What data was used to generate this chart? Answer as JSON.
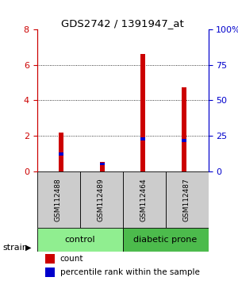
{
  "title": "GDS2742 / 1391947_at",
  "samples": [
    "GSM112488",
    "GSM112489",
    "GSM112464",
    "GSM112487"
  ],
  "red_values": [
    2.2,
    0.5,
    6.6,
    4.75
  ],
  "blue_values": [
    0.15,
    0.12,
    0.15,
    0.15
  ],
  "blue_bottoms": [
    0.9,
    0.35,
    1.75,
    1.65
  ],
  "left_ylim": [
    0,
    8
  ],
  "right_ylim": [
    0,
    100
  ],
  "left_yticks": [
    0,
    2,
    4,
    6,
    8
  ],
  "right_yticks": [
    0,
    25,
    50,
    75,
    100
  ],
  "right_yticklabels": [
    "0",
    "25",
    "50",
    "75",
    "100%"
  ],
  "groups": [
    {
      "label": "control",
      "indices": [
        0,
        1
      ],
      "color": "#90EE90"
    },
    {
      "label": "diabetic prone",
      "indices": [
        2,
        3
      ],
      "color": "#4CBB4C"
    }
  ],
  "bar_color_red": "#CC0000",
  "bar_color_blue": "#0000CC",
  "bar_width": 0.12,
  "background_color": "#ffffff",
  "title_color": "#000000",
  "left_axis_color": "#CC0000",
  "right_axis_color": "#0000CC",
  "grid_color": "#000000",
  "strain_label": "strain",
  "legend_count": "count",
  "legend_percentile": "percentile rank within the sample",
  "sample_box_color": "#cccccc"
}
